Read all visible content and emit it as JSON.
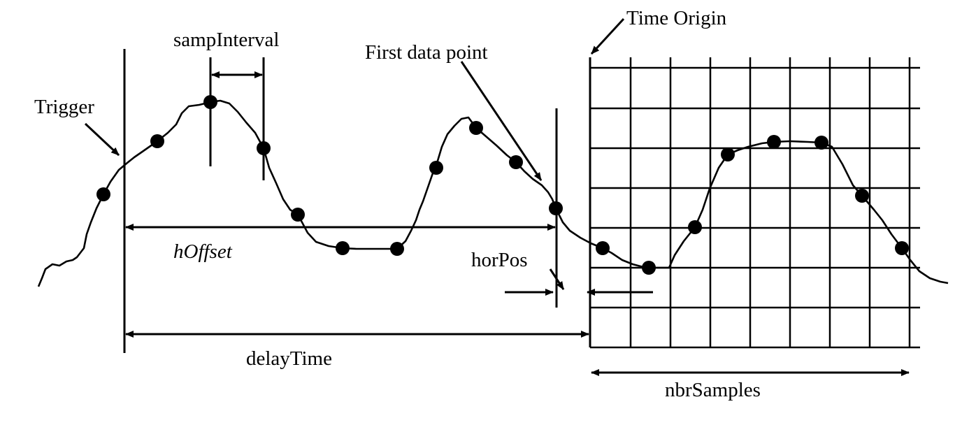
{
  "labels": {
    "trigger": "Trigger",
    "samp_interval": "sampInterval",
    "first_data_point": "First data point",
    "time_origin": "Time Origin",
    "h_offset": "hOffset",
    "hor_pos": "horPos",
    "delay_time": "delayTime",
    "nbr_samples": "nbrSamples"
  },
  "colors": {
    "ink": "#000000",
    "background": "#ffffff"
  }
}
